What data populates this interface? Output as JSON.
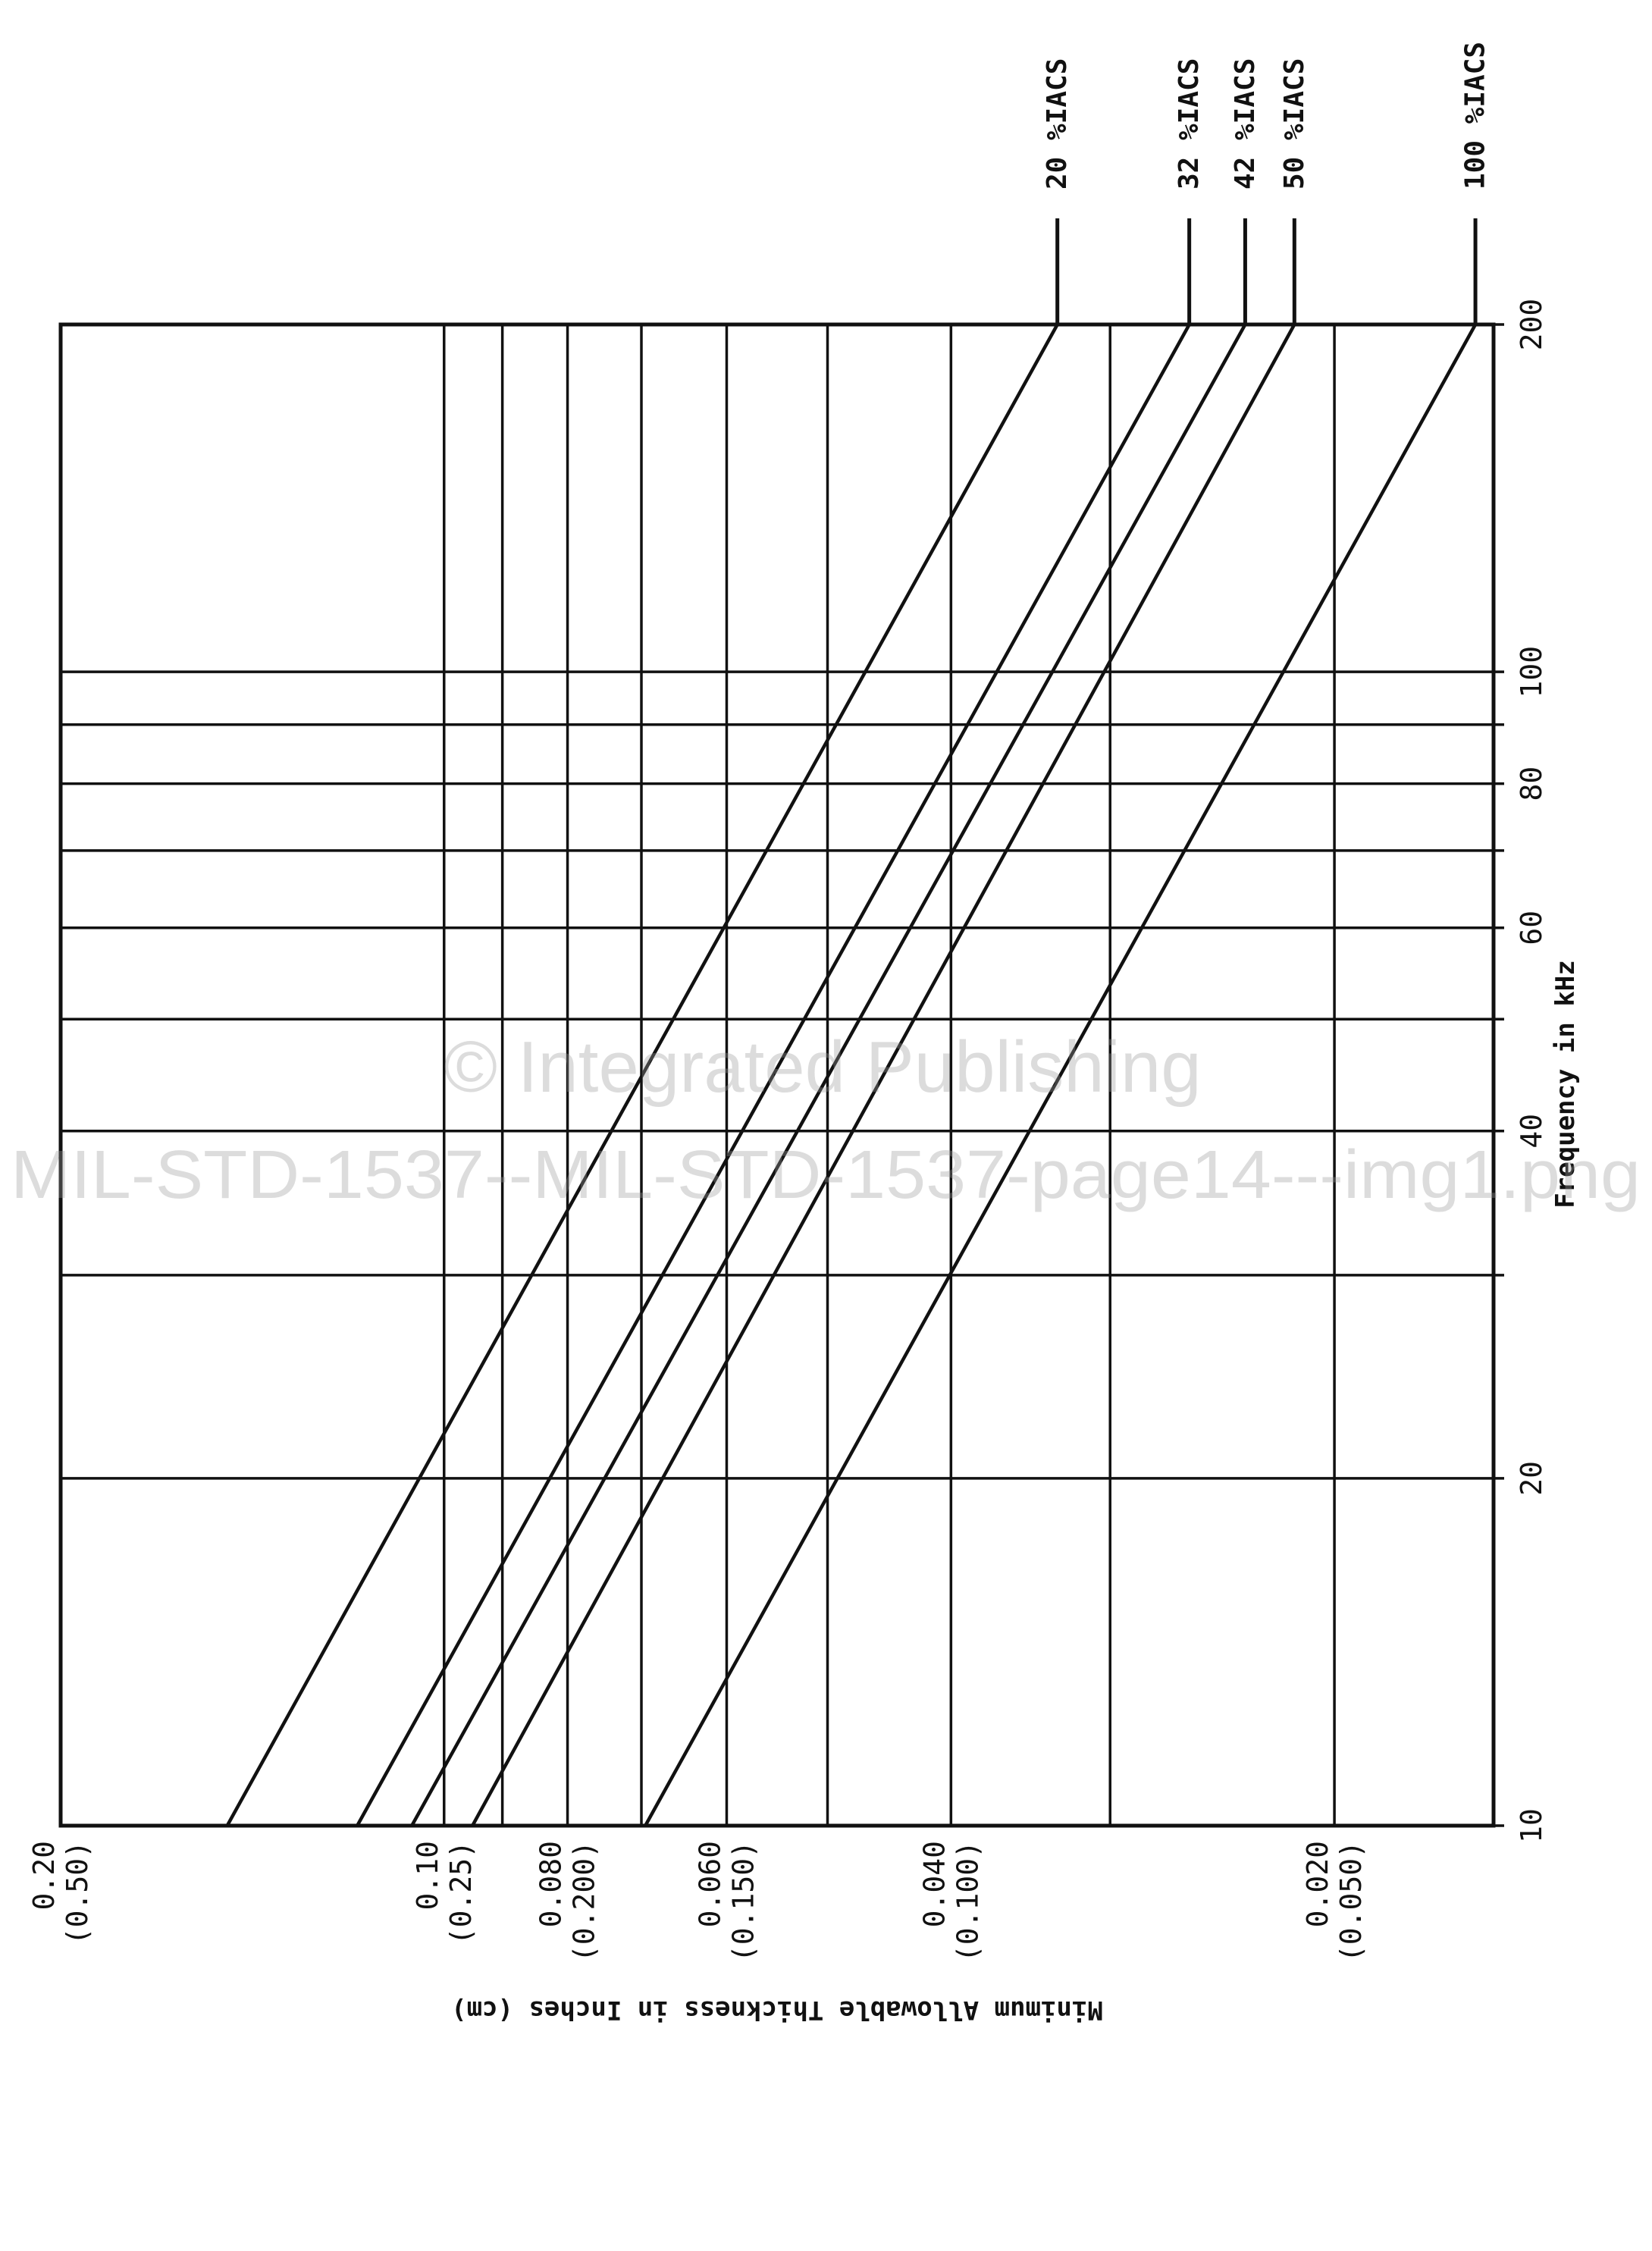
{
  "chart_data": {
    "type": "line",
    "orientation": "rotated 90 degrees counter-clockwise",
    "xscale": "log",
    "yscale": "log",
    "xlabel": "Frequency in kHz",
    "ylabel": "Minimum Allowable Thickness in Inches (cm)",
    "xlim": [
      10,
      200
    ],
    "ylim": [
      0.015,
      0.2
    ],
    "grid": true,
    "x_ticks": [
      10,
      20,
      40,
      60,
      80,
      100,
      200
    ],
    "x_tick_labels": [
      "10",
      "20",
      "40",
      "60",
      "80",
      "100",
      "200"
    ],
    "x_gridlines": [
      10,
      20,
      30,
      40,
      50,
      60,
      70,
      80,
      90,
      100,
      200
    ],
    "y_ticks": [
      {
        "value": 0.2,
        "inches": "0.20",
        "cm": "(0.50)"
      },
      {
        "value": 0.1,
        "inches": "0.10",
        "cm": "(0.25)"
      },
      {
        "value": 0.08,
        "inches": "0.080",
        "cm": "(0.200)"
      },
      {
        "value": 0.06,
        "inches": "0.060",
        "cm": "(0.150)"
      },
      {
        "value": 0.04,
        "inches": "0.040",
        "cm": "(0.100)"
      },
      {
        "value": 0.02,
        "inches": "0.020",
        "cm": "(0.050)"
      }
    ],
    "y_gridlines": [
      0.02,
      0.03,
      0.04,
      0.05,
      0.06,
      0.07,
      0.08,
      0.09,
      0.1
    ],
    "series": [
      {
        "name": "20 %IACS",
        "x": [
          10,
          200
        ],
        "y": [
          0.148,
          0.033
        ]
      },
      {
        "name": "32 %IACS",
        "x": [
          10,
          200
        ],
        "y": [
          0.117,
          0.026
        ]
      },
      {
        "name": "42 %IACS",
        "x": [
          10,
          200
        ],
        "y": [
          0.106,
          0.0235
        ]
      },
      {
        "name": "50 %IACS",
        "x": [
          10,
          200
        ],
        "y": [
          0.095,
          0.0215
        ]
      },
      {
        "name": "100 %IACS",
        "x": [
          10,
          200
        ],
        "y": [
          0.0695,
          0.0155
        ]
      }
    ]
  },
  "watermark": {
    "line1": "© Integrated Publishing",
    "line2": "MIL-STD-1537--MIL-STD-1537-page14---img1.png"
  },
  "colors": {
    "ink": "#111111",
    "watermark": "#9a9a9a"
  }
}
